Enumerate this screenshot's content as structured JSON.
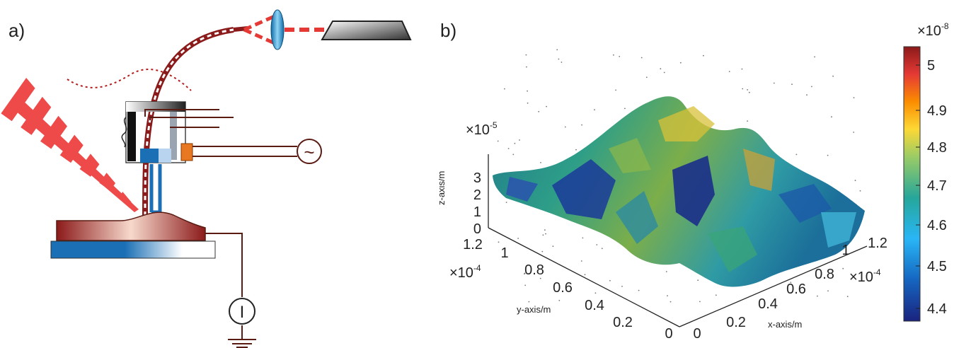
{
  "panel_a": {
    "label": "a)",
    "ac_source_symbol": "~",
    "meter_symbol": "I"
  },
  "panel_b": {
    "label": "b)",
    "z_axis": {
      "label": "z-axis/m",
      "scale": "×10",
      "exp": "-5",
      "ticks": [
        "0",
        "1",
        "2",
        "3"
      ]
    },
    "y_axis": {
      "label": "y-axis/m",
      "scale": "×10",
      "exp": "-4",
      "ticks": [
        "0",
        "0.2",
        "0.4",
        "0.6",
        "0.8",
        "1",
        "1.2"
      ]
    },
    "x_axis": {
      "label": "x-axis/m",
      "scale": "×10",
      "exp": "-4",
      "ticks": [
        "0",
        "0.2",
        "0.4",
        "0.6",
        "0.8",
        "1",
        "1.2"
      ]
    },
    "colorbar": {
      "scale": "×10",
      "exp": "-8",
      "ticks": [
        "5",
        "4.9",
        "4.8",
        "4.7",
        "4.6",
        "4.5",
        "4.4"
      ],
      "colors": [
        "#1a237e",
        "#1565c0",
        "#29b6f6",
        "#26a69a",
        "#9ccc65",
        "#fdd835",
        "#fb8c00",
        "#e53935",
        "#8b1a1a"
      ]
    }
  },
  "chart_data": {
    "type": "surface3d",
    "xlabel": "x-axis/m",
    "ylabel": "y-axis/m",
    "zlabel": "z-axis/m",
    "xlim": [
      0,
      0.00012
    ],
    "ylim": [
      0,
      0.00012
    ],
    "zlim": [
      0,
      3.5e-05
    ],
    "colorbar_range": [
      4.35e-08,
      5.05e-08
    ]
  }
}
